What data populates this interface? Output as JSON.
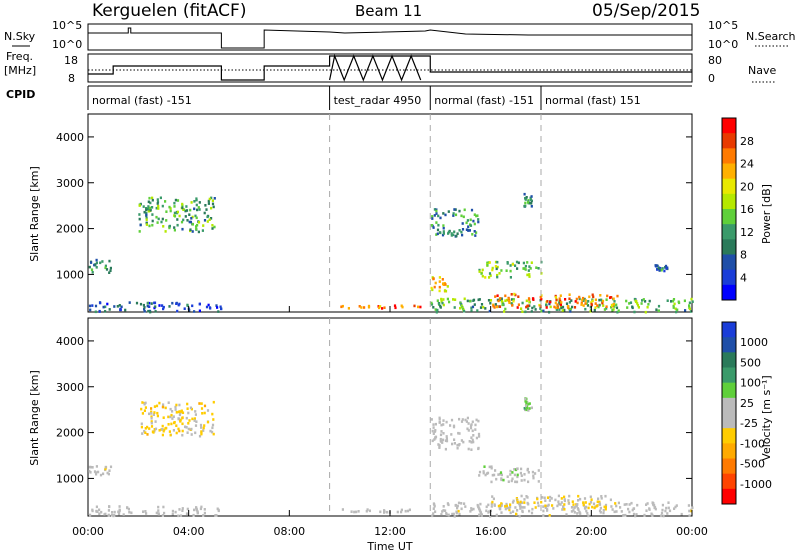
{
  "header": {
    "station": "Kerguelen (fitACF)",
    "beam": "Beam 11",
    "date": "05/Sep/2015"
  },
  "summary": {
    "nsky_label": "N.Sky",
    "freq_label": "Freq.",
    "freq_unit": "[MHz]",
    "cpid_label": "CPID",
    "nsearch_label": "N.Search",
    "nave_label": "Nave",
    "nsky_ticks": [
      "10^5",
      "10^0"
    ],
    "nsearch_ticks": [
      "10^5",
      "10^0"
    ],
    "freq_ticks": [
      "18",
      "8"
    ],
    "nave_ticks": [
      "80",
      "0"
    ]
  },
  "cpid_segments": [
    {
      "label": "normal (fast) -151",
      "start_h": 0.0
    },
    {
      "label": "test_radar 4950",
      "start_h": 9.6
    },
    {
      "label": "normal (fast) -151",
      "start_h": 13.6
    },
    {
      "label": "normal (fast) 151",
      "start_h": 18.0
    }
  ],
  "time_axis": {
    "ticks": [
      "00:00",
      "04:00",
      "08:00",
      "12:00",
      "16:00",
      "20:00",
      "00:00"
    ],
    "label": "Time UT"
  },
  "panels": {
    "power": {
      "ylabel": "Slant Range [km]",
      "yticks": [
        "4000",
        "3000",
        "2000",
        "1000"
      ],
      "cbar_label": "Power [dB]",
      "cbar_ticks": [
        "28",
        "24",
        "20",
        "16",
        "12",
        "8",
        "4"
      ],
      "cbar_colors": [
        "#ff0000",
        "#e83a00",
        "#ff7a00",
        "#ffb000",
        "#e8e800",
        "#b5e800",
        "#5fcf3a",
        "#3a9a6a",
        "#2a7a5a",
        "#1f4fa8",
        "#1a3dd8",
        "#0000ff"
      ]
    },
    "velocity": {
      "ylabel": "Slant Range [km]",
      "yticks": [
        "4000",
        "3000",
        "2000",
        "1000"
      ],
      "cbar_label": "Velocity [m s⁻¹]",
      "cbar_ticks": [
        "1000",
        "500",
        "100",
        "25",
        "-25",
        "-100",
        "-500",
        "-1000"
      ],
      "cbar_colors": [
        "#1a3dd8",
        "#1f4fa8",
        "#2a7a5a",
        "#3a9a6a",
        "#5fcf3a",
        "#bbbbbb",
        "#bbbbbb",
        "#ffcc00",
        "#ffaa00",
        "#ff7a00",
        "#ff4400",
        "#ff0000"
      ]
    }
  },
  "chart_data": {
    "type": "heatmap",
    "x_range_hours": [
      0,
      24
    ],
    "y_range_km": [
      180,
      4500
    ],
    "vertical_markers_h": [
      9.6,
      13.6,
      18.0
    ],
    "power_regions": [
      {
        "t0": 0.0,
        "t1": 5.3,
        "r0": 200,
        "r1": 420,
        "value_db": 6
      },
      {
        "t0": 0.0,
        "t1": 0.9,
        "r0": 1050,
        "r1": 1350,
        "value_db": 10
      },
      {
        "t0": 2.0,
        "t1": 5.0,
        "r0": 1950,
        "r1": 2700,
        "value_db": 12
      },
      {
        "t0": 10.0,
        "t1": 13.2,
        "r0": 280,
        "r1": 350,
        "value_db": 24
      },
      {
        "t0": 13.6,
        "t1": 15.5,
        "r0": 1850,
        "r1": 2450,
        "value_db": 10
      },
      {
        "t0": 13.6,
        "t1": 14.3,
        "r0": 650,
        "r1": 1000,
        "value_db": 20
      },
      {
        "t0": 13.6,
        "t1": 24.0,
        "r0": 200,
        "r1": 500,
        "value_db": 12
      },
      {
        "t0": 15.5,
        "t1": 18.0,
        "r0": 950,
        "r1": 1300,
        "value_db": 14
      },
      {
        "t0": 16.0,
        "t1": 21.0,
        "r0": 300,
        "r1": 600,
        "value_db": 24
      },
      {
        "t0": 17.3,
        "t1": 17.6,
        "r0": 2500,
        "r1": 2800,
        "value_db": 10
      },
      {
        "t0": 22.5,
        "t1": 23.0,
        "r0": 1100,
        "r1": 1250,
        "value_db": 8
      }
    ],
    "velocity_regions": [
      {
        "t0": 0.0,
        "t1": 5.3,
        "r0": 200,
        "r1": 420,
        "value_ms": 0
      },
      {
        "t0": 0.0,
        "t1": 0.9,
        "r0": 1100,
        "r1": 1300,
        "value_ms": -50
      },
      {
        "t0": 2.0,
        "t1": 5.0,
        "r0": 1950,
        "r1": 2700,
        "value_ms": -200
      },
      {
        "t0": 10.0,
        "t1": 13.2,
        "r0": 280,
        "r1": 350,
        "value_ms": 0
      },
      {
        "t0": 13.6,
        "t1": 15.5,
        "r0": 1650,
        "r1": 2350,
        "value_ms": -20
      },
      {
        "t0": 13.6,
        "t1": 24.0,
        "r0": 200,
        "r1": 500,
        "value_ms": -30
      },
      {
        "t0": 15.5,
        "t1": 18.0,
        "r0": 950,
        "r1": 1300,
        "value_ms": 50
      },
      {
        "t0": 16.0,
        "t1": 21.0,
        "r0": 350,
        "r1": 650,
        "value_ms": -150
      },
      {
        "t0": 17.3,
        "t1": 17.6,
        "r0": 2500,
        "r1": 2800,
        "value_ms": 200
      }
    ]
  }
}
